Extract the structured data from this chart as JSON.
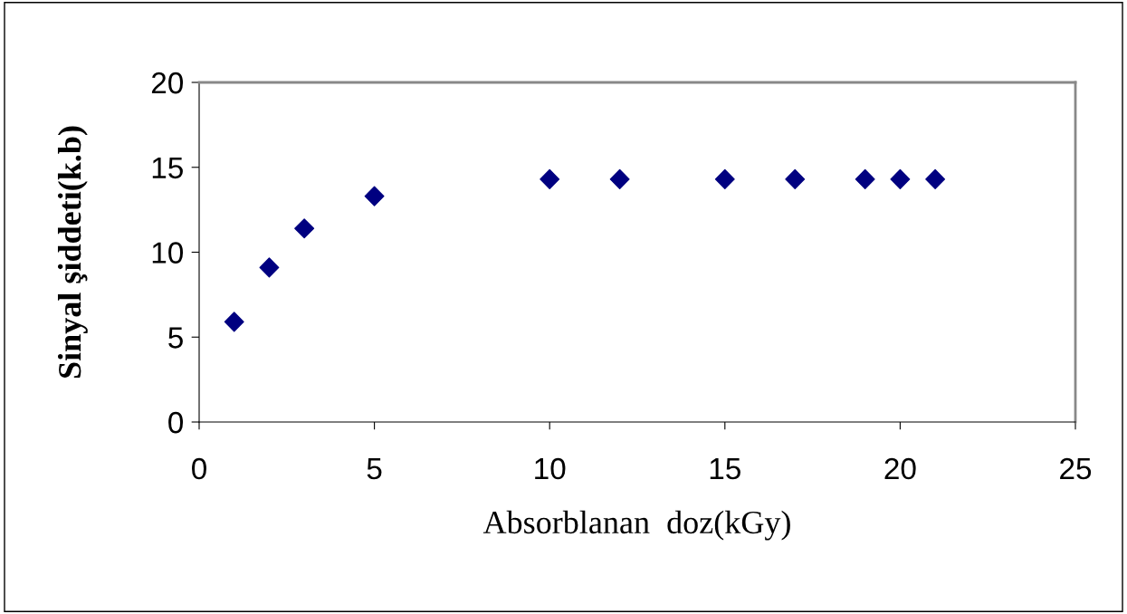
{
  "chart_data": {
    "type": "scatter",
    "xlabel": "Absorblanan  doz(kGy)",
    "ylabel": "Sinyal şiddeti(k.b)",
    "x": [
      1,
      2,
      3,
      5,
      10,
      12,
      15,
      17,
      19,
      20,
      21
    ],
    "series": [
      {
        "color": "#000080",
        "values": [
          5.9,
          9.1,
          11.4,
          13.3,
          14.3,
          14.3,
          14.3,
          14.3,
          14.3,
          14.3,
          14.3
        ]
      }
    ],
    "xlim": [
      0,
      25
    ],
    "xticks": [
      0,
      5,
      10,
      15,
      20,
      25
    ],
    "ylim": [
      0,
      20
    ],
    "yticks": [
      0,
      5,
      10,
      15,
      20
    ],
    "marker": "diamond",
    "grid": false,
    "legend": false
  }
}
